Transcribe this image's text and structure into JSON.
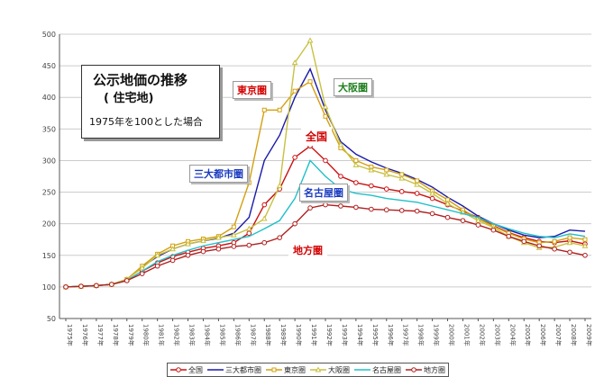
{
  "chart_data": {
    "type": "line",
    "title": "公示地価の推移",
    "subtitle": "( 住宅地)",
    "note": "1975年を100とした場合",
    "ylim": [
      50,
      500
    ],
    "yticks": [
      50,
      100,
      150,
      200,
      250,
      300,
      350,
      400,
      450,
      500
    ],
    "grid": true,
    "legend_position": "bottom",
    "categories": [
      "1975年",
      "1976年",
      "1977年",
      "1978年",
      "1979年",
      "1980年",
      "1981年",
      "1982年",
      "1983年",
      "1984年",
      "1985年",
      "1986年",
      "1987年",
      "1988年",
      "1989年",
      "1990年",
      "1991年",
      "1992年",
      "1993年",
      "1994年",
      "1995年",
      "1996年",
      "1997年",
      "1998年",
      "1999年",
      "2000年",
      "2001年",
      "2002年",
      "2003年",
      "2004年",
      "2005年",
      "2006年",
      "2007年",
      "2008年",
      "2009年"
    ],
    "series": [
      {
        "name": "全国",
        "color": "#cc1111",
        "marker": "circle",
        "values": [
          100,
          101,
          102,
          104,
          110,
          125,
          138,
          148,
          155,
          161,
          165,
          170,
          185,
          230,
          255,
          305,
          323,
          300,
          275,
          265,
          260,
          255,
          251,
          248,
          240,
          230,
          220,
          210,
          197,
          186,
          178,
          172,
          170,
          173,
          168
        ]
      },
      {
        "name": "三大都市圏",
        "color": "#1a1aaa",
        "marker": "none",
        "values": [
          100,
          101,
          102,
          104,
          112,
          132,
          148,
          160,
          168,
          173,
          177,
          185,
          210,
          300,
          340,
          400,
          445,
          380,
          330,
          310,
          298,
          288,
          280,
          270,
          258,
          242,
          228,
          212,
          200,
          190,
          182,
          178,
          180,
          190,
          188
        ]
      },
      {
        "name": "東京圏",
        "color": "#d4a010",
        "marker": "square",
        "values": [
          100,
          101,
          102,
          104,
          112,
          133,
          152,
          165,
          172,
          176,
          180,
          195,
          265,
          380,
          380,
          410,
          425,
          370,
          320,
          300,
          290,
          285,
          278,
          268,
          252,
          238,
          222,
          208,
          196,
          185,
          176,
          170,
          172,
          178,
          175
        ]
      },
      {
        "name": "大阪圏",
        "color": "#c8c040",
        "marker": "triangle",
        "values": [
          100,
          101,
          102,
          104,
          112,
          130,
          150,
          160,
          168,
          173,
          178,
          182,
          192,
          208,
          260,
          455,
          490,
          385,
          325,
          293,
          285,
          278,
          272,
          262,
          248,
          232,
          218,
          205,
          194,
          180,
          170,
          162,
          163,
          170,
          165
        ]
      },
      {
        "name": "名古屋圏",
        "color": "#20c0c8",
        "marker": "none",
        "values": [
          100,
          101,
          102,
          104,
          110,
          125,
          140,
          150,
          158,
          165,
          170,
          175,
          180,
          192,
          205,
          240,
          300,
          275,
          255,
          248,
          245,
          240,
          237,
          234,
          228,
          222,
          216,
          210,
          200,
          192,
          185,
          180,
          178,
          184,
          180
        ]
      },
      {
        "name": "地方圏",
        "color": "#b02020",
        "marker": "circle",
        "values": [
          100,
          101,
          102,
          104,
          110,
          121,
          133,
          142,
          150,
          156,
          160,
          164,
          166,
          170,
          178,
          200,
          225,
          230,
          228,
          226,
          223,
          222,
          221,
          220,
          216,
          210,
          205,
          198,
          190,
          180,
          172,
          165,
          160,
          155,
          150
        ]
      }
    ]
  },
  "callouts": {
    "tokyo": "東京圏",
    "osaka": "大阪圏",
    "zenkoku": "全国",
    "sandai": "三大都市圏",
    "nagoya": "名古屋圏",
    "chiho": "地方圏"
  },
  "colors": {
    "grid": "#cccccc",
    "axis": "#555555",
    "callout_red": "#d40000",
    "callout_blue": "#1a3ac0",
    "callout_green": "#208020"
  }
}
